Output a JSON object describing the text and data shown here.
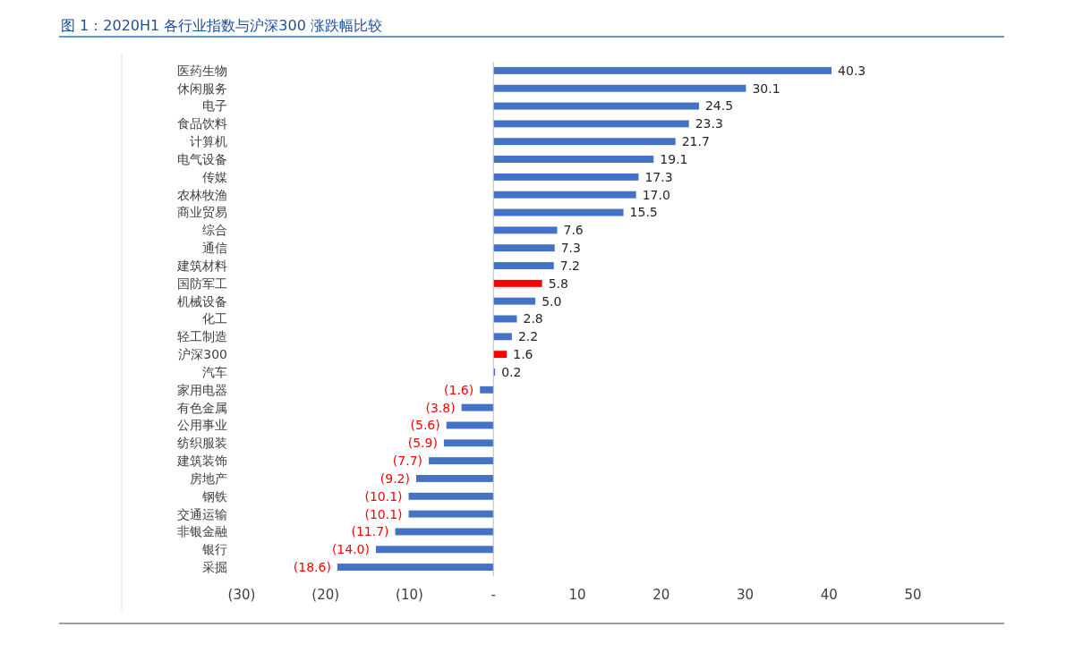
{
  "chart_data": {
    "type": "bar",
    "orientation": "horizontal",
    "title": "图 1：2020H1 各行业指数与沪深300 涨跌幅比较",
    "categories": [
      "医药生物",
      "休闲服务",
      "电子",
      "食品饮料",
      "计算机",
      "电气设备",
      "传媒",
      "农林牧渔",
      "商业贸易",
      "综合",
      "通信",
      "建筑材料",
      "国防军工",
      "机械设备",
      "化工",
      "轻工制造",
      "沪深300",
      "汽车",
      "家用电器",
      "有色金属",
      "公用事业",
      "纺织服装",
      "建筑装饰",
      "房地产",
      "钢铁",
      "交通运输",
      "非银金融",
      "银行",
      "采掘"
    ],
    "values": [
      40.3,
      30.1,
      24.5,
      23.3,
      21.7,
      19.1,
      17.3,
      17.0,
      15.5,
      7.6,
      7.3,
      7.2,
      5.8,
      5.0,
      2.8,
      2.2,
      1.6,
      0.2,
      -1.6,
      -3.8,
      -5.6,
      -5.9,
      -7.7,
      -9.2,
      -10.1,
      -10.1,
      -11.7,
      -14.0,
      -18.6
    ],
    "value_labels": [
      "40.3",
      "30.1",
      "24.5",
      "23.3",
      "21.7",
      "19.1",
      "17.3",
      "17.0",
      "15.5",
      "7.6",
      "7.3",
      "7.2",
      "5.8",
      "5.0",
      "2.8",
      "2.2",
      "1.6",
      "0.2",
      "(1.6)",
      "(3.8)",
      "(5.6)",
      "(5.9)",
      "(7.7)",
      "(9.2)",
      "(10.1)",
      "(10.1)",
      "(11.7)",
      "(14.0)",
      "(18.6)"
    ],
    "colors": [
      "#4472c4",
      "#4472c4",
      "#4472c4",
      "#4472c4",
      "#4472c4",
      "#4472c4",
      "#4472c4",
      "#4472c4",
      "#4472c4",
      "#4472c4",
      "#4472c4",
      "#4472c4",
      "#ff0000",
      "#4472c4",
      "#4472c4",
      "#4472c4",
      "#ff0000",
      "#4472c4",
      "#4472c4",
      "#4472c4",
      "#4472c4",
      "#4472c4",
      "#4472c4",
      "#4472c4",
      "#4472c4",
      "#4472c4",
      "#4472c4",
      "#4472c4",
      "#4472c4"
    ],
    "xlim": [
      -30,
      50
    ],
    "xticks": [
      {
        "value": -30,
        "label": "(30)"
      },
      {
        "value": -20,
        "label": "(20)"
      },
      {
        "value": -10,
        "label": "(10)"
      },
      {
        "value": 0,
        "label": "-"
      },
      10,
      20,
      30,
      40,
      50
    ],
    "tick_labels": "x"
  }
}
